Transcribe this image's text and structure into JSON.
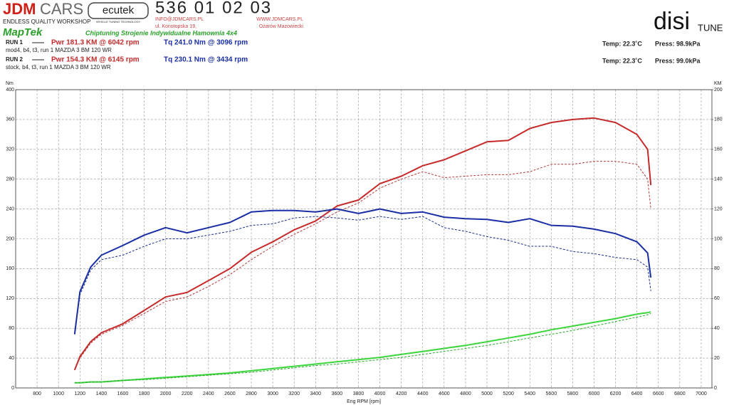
{
  "header": {
    "brand_a": "JDM",
    "brand_b": "CARS",
    "brand_tag": "ENDLESS QUALITY WORKSHOP",
    "ecutek": "ecutek",
    "ecutek_tag": "VEHICLE TUNING TECHNOLOGY",
    "phone": "536 01 02 03",
    "email": "INFO@JDMCARS.PL",
    "web": "WWW.JDMCARS.PL",
    "street": "ul. Konotopska 19,",
    "city": "Ożarów Mazowiecki",
    "maptek": "MapTek",
    "slogan": "Chiptuning Strojenie Indywidualne Hamownia 4x4",
    "disi": "disi",
    "tune": "TUNE"
  },
  "runs": [
    {
      "label": "RUN 1",
      "power": "Pwr  181.3 KM @ 6042 rpm",
      "torque": "Tq 241.0 Nm @ 3096 rpm",
      "desc": "mod4, b4, t3, run 1 MAZDA 3 BM 120 WR",
      "temp": "Temp: 22.3˚C",
      "press": "Press: 98.9kPa"
    },
    {
      "label": "RUN 2",
      "power": "Pwr  154.3 KM @ 6145 rpm",
      "torque": "Tq 230.1 Nm @ 3434 rpm",
      "desc": "stock, b4, t3, run 1 MAZDA 3 BM 120 WR",
      "temp": "Temp: 22.3˚C",
      "press": "Press: 99.0kPa"
    }
  ],
  "chart_data": {
    "type": "line",
    "xlabel": "Eng RPM [rpm]",
    "ylabel": "Nm",
    "y2label": "KM",
    "xlim": [
      600,
      7100
    ],
    "ylim": [
      0,
      400
    ],
    "y2lim": [
      0,
      200
    ],
    "xticks": [
      800,
      1000,
      1200,
      1400,
      1600,
      1800,
      2000,
      2200,
      2400,
      2600,
      2800,
      3000,
      3200,
      3400,
      3600,
      3800,
      4000,
      4200,
      4400,
      4600,
      4800,
      5000,
      5200,
      5400,
      5600,
      5800,
      6000,
      6200,
      6400,
      6600,
      6800,
      7000
    ],
    "yticks": [
      0,
      40,
      80,
      120,
      160,
      200,
      240,
      280,
      320,
      360,
      400
    ],
    "y2ticks": [
      0,
      20,
      40,
      60,
      80,
      100,
      120,
      140,
      160,
      180,
      200
    ],
    "grid": true,
    "x": [
      1150,
      1200,
      1300,
      1400,
      1600,
      1800,
      2000,
      2200,
      2400,
      2600,
      2800,
      3000,
      3200,
      3400,
      3600,
      3800,
      4000,
      4200,
      4400,
      4600,
      4800,
      5000,
      5200,
      5400,
      5600,
      5800,
      6000,
      6200,
      6400,
      6500,
      6530
    ],
    "series": [
      {
        "color": "#c62a2a",
        "dash": false,
        "axis": "y2",
        "values": [
          12,
          21,
          31,
          37,
          43,
          52,
          61,
          64,
          72,
          80,
          91,
          98,
          106,
          112,
          122,
          126,
          137,
          142,
          149,
          153,
          159,
          165,
          166,
          174,
          178,
          180,
          181,
          178,
          170,
          160,
          136
        ]
      },
      {
        "color": "#b33a3a",
        "dash": true,
        "axis": "y2",
        "values": [
          12,
          20,
          30,
          36,
          42,
          50,
          58,
          61,
          68,
          76,
          86,
          95,
          103,
          110,
          118,
          124,
          134,
          140,
          145,
          141,
          142,
          143,
          143,
          145,
          150,
          150,
          152,
          152,
          150,
          140,
          120
        ]
      },
      {
        "color": "#1a2fa5",
        "dash": false,
        "values": [
          72,
          129,
          162,
          178,
          191,
          205,
          215,
          208,
          215,
          222,
          236,
          238,
          238,
          236,
          240,
          234,
          240,
          234,
          236,
          229,
          227,
          226,
          222,
          227,
          218,
          217,
          213,
          207,
          196,
          181,
          148
        ]
      },
      {
        "color": "#1a2f8a",
        "dash": true,
        "values": [
          72,
          125,
          158,
          172,
          178,
          190,
          200,
          200,
          205,
          210,
          218,
          220,
          228,
          230,
          228,
          225,
          230,
          226,
          230,
          215,
          210,
          203,
          198,
          190,
          190,
          183,
          180,
          175,
          172,
          162,
          130
        ]
      },
      {
        "color": "#3ad63a",
        "dash": false,
        "values": [
          7,
          7,
          8,
          8,
          10,
          12,
          14,
          16,
          18,
          20,
          23,
          26,
          29,
          32,
          35,
          38,
          41,
          45,
          49,
          53,
          57,
          62,
          67,
          72,
          78,
          83,
          88,
          93,
          99,
          101,
          102
        ]
      },
      {
        "color": "#2aa62a",
        "dash": true,
        "values": [
          7,
          7,
          8,
          8,
          10,
          11,
          13,
          15,
          17,
          19,
          21,
          24,
          27,
          30,
          32,
          35,
          38,
          41,
          45,
          49,
          53,
          57,
          62,
          67,
          72,
          77,
          83,
          89,
          95,
          98,
          100
        ]
      }
    ]
  }
}
